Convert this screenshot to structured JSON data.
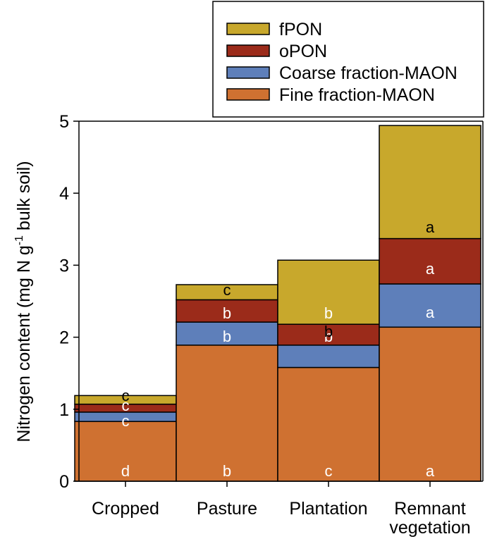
{
  "chart_data": {
    "type": "bar",
    "stacked": true,
    "categories": [
      [
        "Cropped"
      ],
      [
        "Pasture"
      ],
      [
        "Plantation"
      ],
      [
        "Remnant",
        "vegetation"
      ]
    ],
    "series": [
      {
        "name": "Fine fraction-MAON",
        "color": "#cf7131",
        "values": [
          0.83,
          1.89,
          1.58,
          2.14
        ],
        "letters": [
          "d",
          "b",
          "c",
          "a"
        ],
        "letter_colors": [
          "#ffffff",
          "#ffffff",
          "#ffffff",
          "#ffffff"
        ]
      },
      {
        "name": "Coarse fraction-MAON",
        "color": "#5e7fba",
        "values": [
          0.13,
          0.32,
          0.31,
          0.6
        ],
        "letters": [
          "c",
          "b",
          "b",
          "a"
        ],
        "letter_colors": [
          "#ffffff",
          "#ffffff",
          "#ffffff",
          "#ffffff"
        ]
      },
      {
        "name": "oPON",
        "color": "#9b2b1a",
        "values": [
          0.11,
          0.31,
          0.29,
          0.63
        ],
        "letters": [
          "c",
          "b",
          "b",
          "a"
        ],
        "letter_colors": [
          "#ffffff",
          "#ffffff",
          "#ffffff",
          "#ffffff"
        ]
      },
      {
        "name": "fPON",
        "color": "#c8a82c",
        "values": [
          0.12,
          0.21,
          0.89,
          1.57
        ],
        "letters": [
          "c",
          "c",
          "b",
          "a"
        ],
        "letter_colors": [
          "#000000",
          "#000000",
          "#000000",
          "#000000"
        ]
      }
    ],
    "ylabel": {
      "main": "Nitrogen content (mg N g",
      "sup": "-1",
      "tail": " bulk soil)"
    },
    "ylim": [
      0,
      5
    ],
    "yticks": [
      "0",
      "1",
      "2",
      "3",
      "4",
      "5"
    ],
    "ytick_values": [
      0,
      1,
      2,
      3,
      4,
      5
    ],
    "legend_position": "top-right",
    "legend_order": [
      "fPON",
      "oPON",
      "Coarse fraction-MAON",
      "Fine fraction-MAON"
    ],
    "grid": false
  }
}
